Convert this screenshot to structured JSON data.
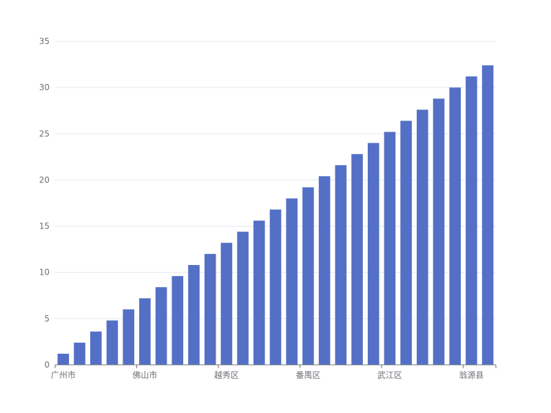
{
  "chart_data": {
    "type": "bar",
    "categories": [
      "广州市",
      "",
      "",
      "",
      "",
      "佛山市",
      "",
      "",
      "",
      "",
      "越秀区",
      "",
      "",
      "",
      "",
      "番禺区",
      "",
      "",
      "",
      "",
      "武江区",
      "",
      "",
      "",
      "",
      "翁源县",
      ""
    ],
    "series": [
      {
        "values": [
          1.2,
          2.4,
          3.6,
          4.8,
          6.0,
          7.2,
          8.4,
          9.6,
          10.8,
          12.0,
          13.2,
          14.4,
          15.6,
          16.8,
          18.0,
          19.2,
          20.4,
          21.6,
          22.8,
          24.0,
          25.2,
          26.4,
          27.6,
          28.8,
          30.0,
          31.2,
          32.4
        ],
        "color": "#5470c6"
      }
    ],
    "x_tick_labels": [
      "广州市",
      "佛山市",
      "越秀区",
      "番禺区",
      "武江区",
      "翁源县"
    ],
    "y_ticks": [
      "0",
      "5",
      "10",
      "15",
      "20",
      "25",
      "30",
      "35"
    ],
    "ylim": [
      0,
      35
    ],
    "grid": true,
    "legend": "none"
  }
}
